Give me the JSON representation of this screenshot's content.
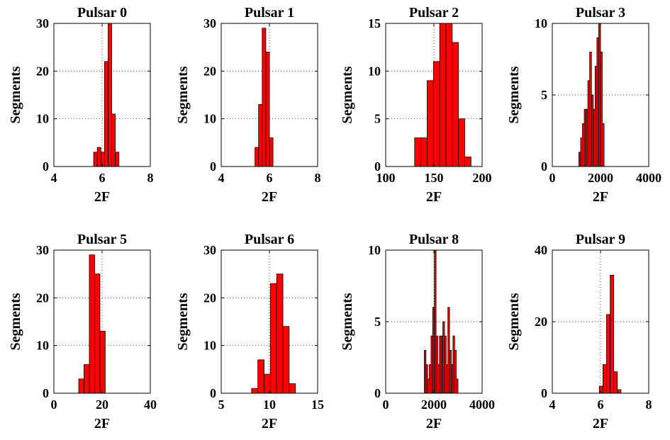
{
  "figure": {
    "bar_color": "#ff0000",
    "bar_edge": "#000000",
    "grid": "dotted"
  },
  "chart_data": [
    {
      "type": "bar",
      "title": "Pulsar 0",
      "xlabel": "2F",
      "ylabel": "Segments",
      "xlim": [
        4,
        8
      ],
      "xticks": [
        4,
        6,
        8
      ],
      "ylim": [
        0,
        30
      ],
      "yticks": [
        0,
        10,
        20,
        30
      ],
      "grid": true,
      "bin_width": 0.15,
      "injected_x": 6.0,
      "x": [
        5.65,
        5.8,
        5.95,
        6.1,
        6.25,
        6.4,
        6.55,
        6.7
      ],
      "values": [
        3,
        4,
        3,
        22,
        30,
        11,
        3,
        0
      ]
    },
    {
      "type": "bar",
      "title": "Pulsar 1",
      "xlabel": "2F",
      "ylabel": "Segments",
      "xlim": [
        4,
        8
      ],
      "xticks": [
        4,
        6,
        8
      ],
      "ylim": [
        0,
        30
      ],
      "yticks": [
        0,
        10,
        20,
        30
      ],
      "grid": true,
      "bin_width": 0.15,
      "injected_x": 6.0,
      "x": [
        5.4,
        5.55,
        5.7,
        5.85,
        6.0,
        6.15
      ],
      "values": [
        4,
        13,
        29,
        24,
        6,
        0
      ]
    },
    {
      "type": "bar",
      "title": "Pulsar 2",
      "xlabel": "2F",
      "ylabel": "Segments",
      "xlim": [
        100,
        200
      ],
      "xticks": [
        100,
        150,
        200
      ],
      "ylim": [
        0,
        15
      ],
      "yticks": [
        0,
        5,
        10,
        15
      ],
      "grid": true,
      "bin_width": 6.5,
      "injected_x": 150,
      "x": [
        130,
        136.5,
        143,
        149.5,
        156,
        162.5,
        169,
        175.5,
        182,
        188.5
      ],
      "values": [
        3,
        3,
        9,
        11,
        15,
        15,
        13,
        5,
        1,
        0
      ]
    },
    {
      "type": "bar",
      "title": "Pulsar 3",
      "xlabel": "2F",
      "ylabel": "Segments",
      "xlim": [
        0,
        4000
      ],
      "xticks": [
        0,
        2000,
        4000
      ],
      "ylim": [
        0,
        10
      ],
      "yticks": [
        0,
        5,
        10
      ],
      "grid": true,
      "bin_width": 75,
      "injected_x": 2000,
      "x": [
        1100,
        1175,
        1250,
        1325,
        1400,
        1475,
        1550,
        1625,
        1700,
        1775,
        1850,
        1925,
        2000,
        2075,
        2150
      ],
      "values": [
        1,
        2,
        3,
        4,
        4,
        6,
        8,
        5,
        4,
        7,
        9,
        10,
        8,
        3,
        0
      ]
    },
    {
      "type": "bar",
      "title": "Pulsar 5",
      "xlabel": "2F",
      "ylabel": "Segments",
      "xlim": [
        0,
        40
      ],
      "xticks": [
        0,
        20,
        40
      ],
      "ylim": [
        0,
        30
      ],
      "yticks": [
        0,
        10,
        20,
        30
      ],
      "grid": true,
      "bin_width": 2.2,
      "injected_x": 20,
      "x": [
        10.3,
        12.5,
        14.7,
        16.9,
        19.1
      ],
      "values": [
        3,
        6,
        29,
        25,
        13
      ]
    },
    {
      "type": "bar",
      "title": "Pulsar 6",
      "xlabel": "2F",
      "ylabel": "Segments",
      "xlim": [
        5,
        15
      ],
      "xticks": [
        5,
        10,
        15
      ],
      "ylim": [
        0,
        30
      ],
      "yticks": [
        0,
        10,
        20,
        30
      ],
      "grid": true,
      "bin_width": 0.65,
      "injected_x": 10,
      "x": [
        8.15,
        8.8,
        9.45,
        10.1,
        10.75,
        11.4,
        12.05,
        12.7
      ],
      "values": [
        1,
        7,
        4,
        23,
        25,
        14,
        2,
        0
      ]
    },
    {
      "type": "bar",
      "title": "Pulsar 8",
      "xlabel": "2F",
      "ylabel": "Segments",
      "xlim": [
        0,
        4000
      ],
      "xticks": [
        0,
        2000,
        4000
      ],
      "ylim": [
        0,
        10
      ],
      "yticks": [
        0,
        5,
        10
      ],
      "grid": true,
      "bin_width": 70,
      "injected_x": 2000,
      "x": [
        1600,
        1670,
        1740,
        1810,
        1880,
        1950,
        2020,
        2090,
        2160,
        2230,
        2300,
        2370,
        2440,
        2510,
        2580,
        2650,
        2720,
        2790,
        2860,
        2930
      ],
      "values": [
        3,
        2,
        1,
        2,
        4,
        6,
        10,
        4,
        2,
        4,
        4,
        5,
        4,
        2,
        6,
        3,
        2,
        4,
        3,
        1
      ]
    },
    {
      "type": "bar",
      "title": "Pulsar 9",
      "xlabel": "2F",
      "ylabel": "Segments",
      "xlim": [
        4,
        8
      ],
      "xticks": [
        4,
        6,
        8
      ],
      "ylim": [
        0,
        40
      ],
      "yticks": [
        0,
        20,
        40
      ],
      "grid": true,
      "bin_width": 0.15,
      "injected_x": 6.0,
      "x": [
        5.95,
        6.1,
        6.25,
        6.4,
        6.55,
        6.7
      ],
      "values": [
        2,
        8,
        22,
        33,
        6,
        1
      ]
    }
  ]
}
